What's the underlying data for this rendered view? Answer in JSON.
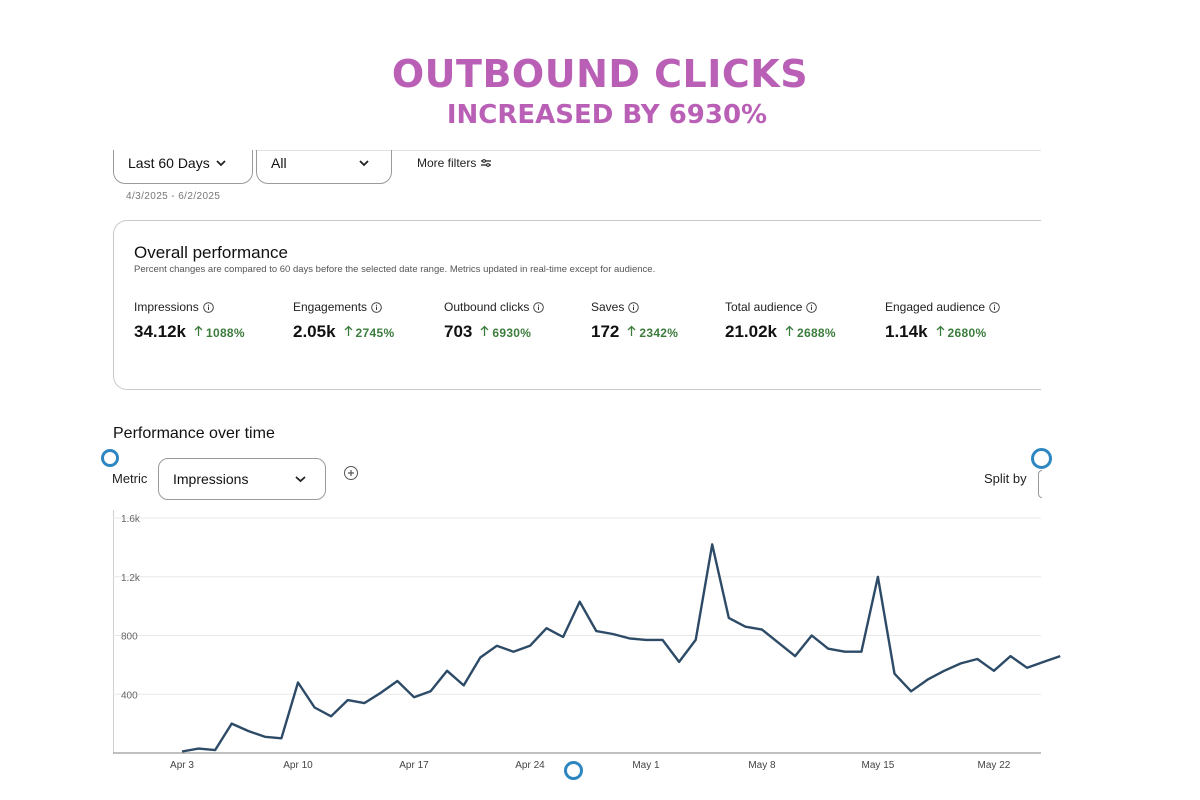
{
  "headline": {
    "line1": "OUTBOUND CLICKS",
    "line2": "INCREASED BY 6930%",
    "color": "#b960b6"
  },
  "filters": {
    "date_select": "Last 60 Days",
    "view_select": "All",
    "more_filters": "More filters",
    "date_range": "4/3/2025 - 6/2/2025"
  },
  "overall": {
    "title": "Overall performance",
    "subtitle": "Percent changes are compared to 60 days before the selected date range. Metrics updated in real-time except for audience.",
    "metrics": [
      {
        "label": "Impressions",
        "value": "34.12k",
        "change": "1088%"
      },
      {
        "label": "Engagements",
        "value": "2.05k",
        "change": "2745%"
      },
      {
        "label": "Outbound clicks",
        "value": "703",
        "change": "6930%"
      },
      {
        "label": "Saves",
        "value": "172",
        "change": "2342%"
      },
      {
        "label": "Total audience",
        "value": "21.02k",
        "change": "2688%"
      },
      {
        "label": "Engaged audience",
        "value": "1.14k",
        "change": "2680%"
      }
    ]
  },
  "over_time": {
    "title": "Performance over time",
    "metric_label": "Metric",
    "metric_value": "Impressions",
    "split_label": "Split by"
  },
  "chart_data": {
    "type": "line",
    "title": "",
    "xlabel": "",
    "ylabel": "",
    "ylim": [
      0,
      1600
    ],
    "yticks": [
      400,
      800,
      1200,
      1600
    ],
    "ytick_labels": [
      "400",
      "800",
      "1.2k",
      "1.6k"
    ],
    "xtick_labels": [
      "Apr 3",
      "Apr 10",
      "Apr 17",
      "Apr 24",
      "May 1",
      "May 8",
      "May 15",
      "May 22"
    ],
    "xtick_days": [
      3,
      10,
      17,
      24,
      31,
      38,
      45,
      52
    ],
    "x_days": [
      3,
      4,
      5,
      6,
      7,
      8,
      9,
      10,
      11,
      12,
      13,
      14,
      15,
      16,
      17,
      18,
      19,
      20,
      21,
      22,
      23,
      24,
      25,
      26,
      27,
      28,
      29,
      30,
      31,
      32,
      33,
      34,
      35,
      36,
      37,
      38,
      39,
      40,
      41,
      42,
      43,
      44,
      45,
      46,
      47,
      48,
      49,
      50,
      51,
      52,
      53,
      54,
      55,
      56
    ],
    "series": [
      {
        "color": "#2d4b67",
        "values": [
          10,
          30,
          20,
          200,
          150,
          110,
          100,
          480,
          310,
          250,
          360,
          340,
          410,
          490,
          380,
          420,
          560,
          460,
          650,
          730,
          690,
          730,
          850,
          790,
          1030,
          830,
          810,
          780,
          770,
          770,
          620,
          770,
          1420,
          920,
          860,
          840,
          750,
          660,
          800,
          710,
          690,
          690,
          1200,
          540,
          420,
          500,
          560,
          610,
          640,
          560,
          660,
          580,
          620,
          660
        ]
      }
    ],
    "grid": true,
    "legend": "none"
  }
}
